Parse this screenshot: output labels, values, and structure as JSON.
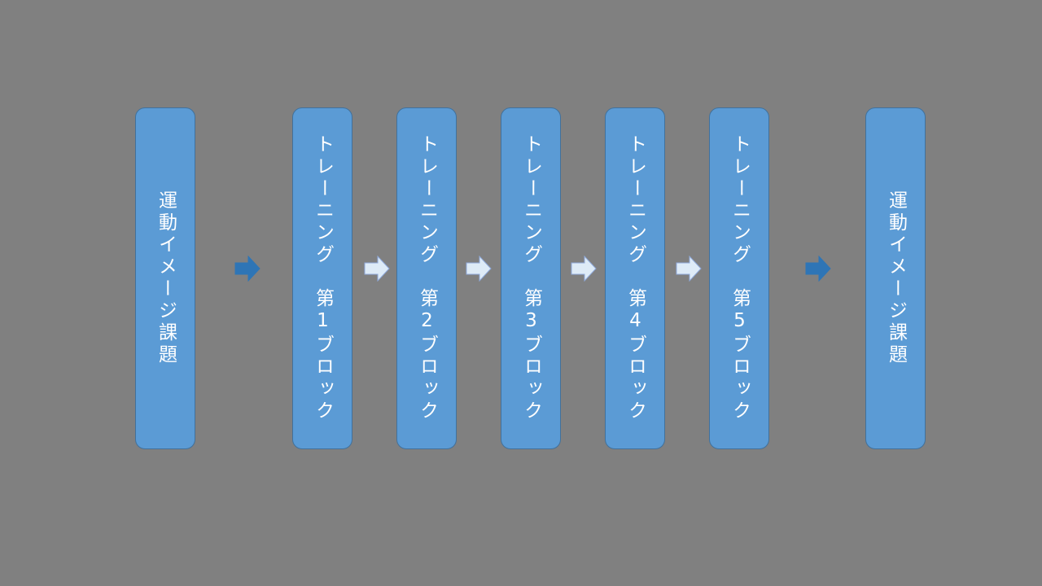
{
  "diagram": {
    "start": {
      "label": "運動イメージ課題"
    },
    "blocks": [
      {
        "label": "トレーニング　第1ブロック"
      },
      {
        "label": "トレーニング　第2ブロック"
      },
      {
        "label": "トレーニング　第3ブロック"
      },
      {
        "label": "トレーニング　第4ブロック"
      },
      {
        "label": "トレーニング　第5ブロック"
      }
    ],
    "end": {
      "label": "運動イメージ課題"
    },
    "colors": {
      "background": "#808080",
      "box_fill": "#5b9bd5",
      "box_border": "#41719c",
      "arrow_solid": "#2e75b6",
      "arrow_light": "#deebf7"
    },
    "arrow_icons": [
      "solid-arrow-icon",
      "light-arrow-icon"
    ]
  }
}
